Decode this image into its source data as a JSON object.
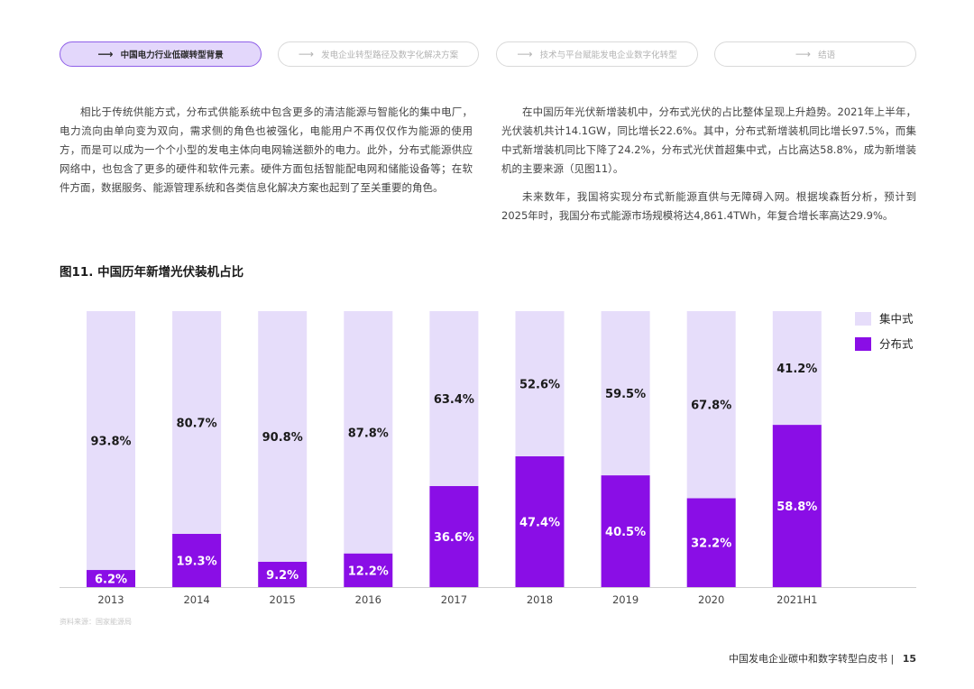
{
  "nav": {
    "items": [
      {
        "label": "中国电力行业低碳转型背景",
        "active": true
      },
      {
        "label": "发电企业转型路径及数字化解决方案",
        "active": false
      },
      {
        "label": "技术与平台赋能发电企业数字化转型",
        "active": false
      },
      {
        "label": "结语",
        "active": false
      }
    ],
    "arrow": "⟶"
  },
  "body": {
    "left_paragraph": "相比于传统供能方式，分布式供能系统中包含更多的清洁能源与智能化的集中电厂，电力流向由单向变为双向，需求侧的角色也被强化，电能用户不再仅仅作为能源的使用方，而是可以成为一个个小型的发电主体向电网输送额外的电力。此外，分布式能源供应网络中，也包含了更多的硬件和软件元素。硬件方面包括智能配电网和储能设备等；在软件方面，数据服务、能源管理系统和各类信息化解决方案也起到了至关重要的角色。",
    "right_paragraph_1": "在中国历年光伏新增装机中，分布式光伏的占比整体呈现上升趋势。2021年上半年，光伏装机共计14.1GW，同比增长22.6%。其中，分布式新增装机同比增长97.5%，而集中式新增装机同比下降了24.2%，分布式光伏首超集中式，占比高达58.8%，成为新增装机的主要来源（见图11）。",
    "right_paragraph_2": "未来数年，我国将实现分布式新能源直供与无障碍入网。根据埃森哲分析，预计到2025年时，我国分布式能源市场规模将达4,861.4TWh，年复合增长率高达29.9%。"
  },
  "figure": {
    "title": "图11. 中国历年新增光伏装机占比",
    "source": "资料来源：国家能源局"
  },
  "chart_data": {
    "type": "bar",
    "stacked": true,
    "categories": [
      "2013",
      "2014",
      "2015",
      "2016",
      "2017",
      "2018",
      "2019",
      "2020",
      "2021H1"
    ],
    "series": [
      {
        "name": "分布式",
        "values": [
          6.2,
          19.3,
          9.2,
          12.2,
          36.6,
          47.4,
          40.5,
          32.2,
          58.8
        ],
        "color": "#8a0ee6",
        "label_color": "#ffffff"
      },
      {
        "name": "集中式",
        "values": [
          93.8,
          80.7,
          90.8,
          87.8,
          63.4,
          52.6,
          59.5,
          67.8,
          41.2
        ],
        "color": "#e6ddfa",
        "label_color": "#1a1a1a"
      }
    ],
    "value_suffix": "%",
    "ylim": [
      0,
      100
    ],
    "legend_order": [
      "集中式",
      "分布式"
    ],
    "legend_position": "top-right",
    "grid": false
  },
  "footer": {
    "doc_title": "中国发电企业碳中和数字转型白皮书",
    "separator": "|",
    "page_number": "15"
  }
}
